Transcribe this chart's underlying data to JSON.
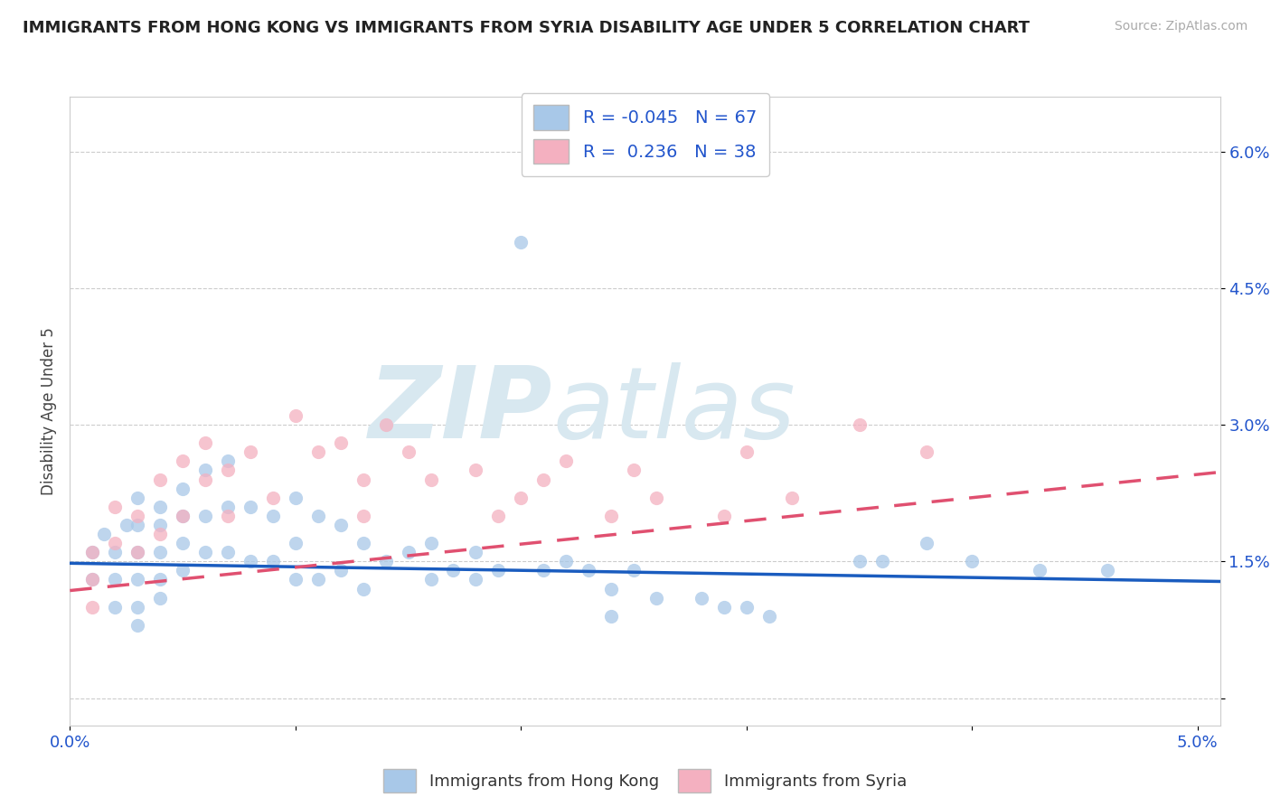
{
  "title": "IMMIGRANTS FROM HONG KONG VS IMMIGRANTS FROM SYRIA DISABILITY AGE UNDER 5 CORRELATION CHART",
  "source": "Source: ZipAtlas.com",
  "ylabel": "Disability Age Under 5",
  "xlim": [
    0.0,
    0.051
  ],
  "ylim": [
    -0.003,
    0.066
  ],
  "xtick_vals": [
    0.0,
    0.01,
    0.02,
    0.03,
    0.04,
    0.05
  ],
  "xtick_labels": [
    "0.0%",
    "",
    "",
    "",
    "",
    "5.0%"
  ],
  "ytick_vals": [
    0.0,
    0.015,
    0.03,
    0.045,
    0.06
  ],
  "ytick_labels": [
    "",
    "1.5%",
    "3.0%",
    "4.5%",
    "6.0%"
  ],
  "legend_hk_r": "-0.045",
  "legend_hk_n": "67",
  "legend_sy_r": "0.236",
  "legend_sy_n": "38",
  "hk_color": "#a8c8e8",
  "sy_color": "#f4b0c0",
  "hk_line_color": "#1a5cbf",
  "sy_line_color": "#e05070",
  "watermark_zip": "ZIP",
  "watermark_atlas": "atlas",
  "hk_scatter_x": [
    0.001,
    0.001,
    0.0015,
    0.002,
    0.002,
    0.002,
    0.0025,
    0.003,
    0.003,
    0.003,
    0.003,
    0.003,
    0.003,
    0.004,
    0.004,
    0.004,
    0.004,
    0.004,
    0.005,
    0.005,
    0.005,
    0.005,
    0.006,
    0.006,
    0.006,
    0.007,
    0.007,
    0.007,
    0.008,
    0.008,
    0.009,
    0.009,
    0.01,
    0.01,
    0.01,
    0.011,
    0.011,
    0.012,
    0.012,
    0.013,
    0.013,
    0.014,
    0.015,
    0.016,
    0.016,
    0.017,
    0.018,
    0.018,
    0.019,
    0.02,
    0.021,
    0.022,
    0.023,
    0.024,
    0.024,
    0.025,
    0.026,
    0.028,
    0.029,
    0.03,
    0.031,
    0.035,
    0.036,
    0.038,
    0.04,
    0.043,
    0.046
  ],
  "hk_scatter_y": [
    0.016,
    0.013,
    0.018,
    0.016,
    0.013,
    0.01,
    0.019,
    0.022,
    0.019,
    0.016,
    0.013,
    0.01,
    0.008,
    0.021,
    0.019,
    0.016,
    0.013,
    0.011,
    0.023,
    0.02,
    0.017,
    0.014,
    0.025,
    0.02,
    0.016,
    0.026,
    0.021,
    0.016,
    0.021,
    0.015,
    0.02,
    0.015,
    0.022,
    0.017,
    0.013,
    0.02,
    0.013,
    0.019,
    0.014,
    0.017,
    0.012,
    0.015,
    0.016,
    0.017,
    0.013,
    0.014,
    0.016,
    0.013,
    0.014,
    0.05,
    0.014,
    0.015,
    0.014,
    0.012,
    0.009,
    0.014,
    0.011,
    0.011,
    0.01,
    0.01,
    0.009,
    0.015,
    0.015,
    0.017,
    0.015,
    0.014,
    0.014
  ],
  "sy_scatter_x": [
    0.001,
    0.001,
    0.001,
    0.002,
    0.002,
    0.003,
    0.003,
    0.004,
    0.004,
    0.005,
    0.005,
    0.006,
    0.006,
    0.007,
    0.007,
    0.008,
    0.009,
    0.01,
    0.011,
    0.012,
    0.013,
    0.013,
    0.014,
    0.015,
    0.016,
    0.018,
    0.019,
    0.02,
    0.021,
    0.022,
    0.024,
    0.025,
    0.026,
    0.029,
    0.03,
    0.032,
    0.035,
    0.038
  ],
  "sy_scatter_y": [
    0.016,
    0.013,
    0.01,
    0.021,
    0.017,
    0.02,
    0.016,
    0.024,
    0.018,
    0.026,
    0.02,
    0.028,
    0.024,
    0.025,
    0.02,
    0.027,
    0.022,
    0.031,
    0.027,
    0.028,
    0.024,
    0.02,
    0.03,
    0.027,
    0.024,
    0.025,
    0.02,
    0.022,
    0.024,
    0.026,
    0.02,
    0.025,
    0.022,
    0.02,
    0.027,
    0.022,
    0.03,
    0.027
  ],
  "hk_trend": [
    0.0,
    0.051,
    0.0148,
    0.0128
  ],
  "sy_trend": [
    0.0,
    0.051,
    0.0118,
    0.0248
  ],
  "bg_color": "#ffffff",
  "grid_color": "#cccccc",
  "bottom_legend_labels": [
    "Immigrants from Hong Kong",
    "Immigrants from Syria"
  ]
}
